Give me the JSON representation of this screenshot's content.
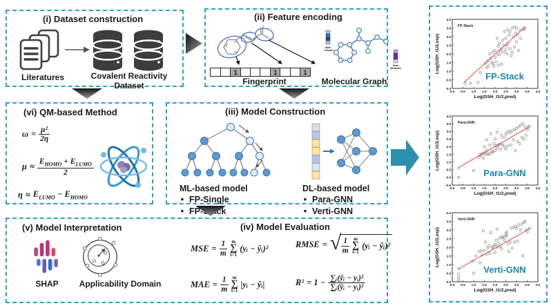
{
  "colors": {
    "border_teal": "#2AA0C8",
    "arrow_teal": "#2D8FAD",
    "plot_label_teal": "#1787AB",
    "trend_red": "#E8483F",
    "node_blue": "#5B9BD5",
    "dark_icon": "#3F3F3F"
  },
  "panel_i": {
    "title": "(i) Dataset construction",
    "literatures_label": "Literatures",
    "dataset_label": "Covalent Reactivity Dataset"
  },
  "panel_ii": {
    "title": "(ii) Feature encoding",
    "fingerprint_label": "Fingerprint",
    "molecular_graph_label": "Molecular Graph",
    "atom_attr_line1": "atom",
    "atom_attr_line2": "attributes",
    "bond_attr_line1": "bond",
    "bond_attr_line2": "attributes",
    "nh2_label": "NH₂",
    "o_label": "O",
    "fingerprint_bits": [
      "",
      "",
      "1",
      "",
      "",
      "",
      "1",
      "",
      "",
      "1"
    ]
  },
  "panel_vi": {
    "title": "(vi) QM-based Method",
    "f1": {
      "lhs": "ω",
      "rel": "=",
      "num": "μ²",
      "den": "2η"
    },
    "f2": {
      "lhs": "μ",
      "rel": "≈",
      "e1": "E",
      "homo": "HOMO",
      "plus": "+",
      "e2": "E",
      "lumo": "LUMO",
      "den": "2"
    },
    "f3": {
      "lhs": "η",
      "rel": "≈",
      "e1": "E",
      "lumo": "LUMO",
      "minus": "−",
      "e2": "E",
      "homo": "HOMO"
    }
  },
  "panel_iii": {
    "title": "(iii) Model Construction",
    "bullet": "•",
    "ml_title": "ML-based model",
    "ml_items": [
      "FP-Single",
      "FP-Stack"
    ],
    "dl_title": "DL-based model",
    "dl_items": [
      "Para-GNN",
      "Verti-GNN"
    ]
  },
  "panel_v": {
    "title": "(v) Model Interpretation",
    "shap_label": "SHAP",
    "ad_label": "Applicability Domain"
  },
  "panel_iv": {
    "title": "(iv) Model Evaluation",
    "mse": {
      "lhs": "MSE",
      "eq": "=",
      "num": "1",
      "den": "m",
      "sum_top": "m",
      "sum": "∑",
      "sum_bot": "i=1",
      "expr": "(yᵢ − ŷᵢ)²"
    },
    "rmse": {
      "lhs": "RMSE",
      "eq": "=",
      "num": "1",
      "den": "m",
      "sum_top": "m",
      "sum": "∑",
      "sum_bot": "i=1",
      "expr": "(yᵢ − ŷᵢ)²"
    },
    "mae": {
      "lhs": "MAE",
      "eq": "=",
      "num": "1",
      "den": "m",
      "sum_top": "m",
      "sum": "∑",
      "sum_bot": "i=1",
      "expr": "|yᵢ − ŷᵢ|"
    },
    "r2": {
      "lhs": "R²",
      "eq": "= 1 −",
      "num": "∑ᵢ(ŷᵢ − yᵢ)²",
      "den": "∑ᵢ(ȳᵢ − yᵢ)²"
    }
  },
  "chart_data": [
    {
      "type": "scatter",
      "inner_label": "FP-Stack",
      "big_label": "FP-Stack",
      "xlabel": "Log(GSH_t1/2,pred)",
      "ylabel": "Log(GSH_t1/2,exp)",
      "xlim": [
        0,
        4
      ],
      "ylim": [
        0,
        4
      ],
      "xticks": [
        0,
        0.5,
        1,
        1.5,
        2,
        2.5,
        3,
        3.5,
        4
      ],
      "yticks": [
        0,
        0.5,
        1,
        1.5,
        2,
        2.5,
        3,
        3.5,
        4
      ],
      "trend": [
        [
          0.55,
          0.35
        ],
        [
          3.4,
          3.55
        ]
      ],
      "points": [
        [
          0.6,
          0.3
        ],
        [
          0.85,
          0.3
        ],
        [
          1.2,
          0.35
        ],
        [
          1.3,
          0.9
        ],
        [
          1.55,
          1.45
        ],
        [
          1.6,
          1.2
        ],
        [
          1.65,
          1.6
        ],
        [
          1.7,
          1.3
        ],
        [
          1.75,
          2.0
        ],
        [
          1.8,
          1.75
        ],
        [
          1.85,
          1.5
        ],
        [
          1.9,
          2.1
        ],
        [
          1.9,
          1.45
        ],
        [
          1.95,
          1.3
        ],
        [
          2.0,
          1.8
        ],
        [
          2.0,
          2.2
        ],
        [
          2.05,
          1.55
        ],
        [
          2.1,
          2.0
        ],
        [
          2.1,
          2.9
        ],
        [
          2.15,
          2.45
        ],
        [
          2.15,
          1.35
        ],
        [
          2.2,
          1.95
        ],
        [
          2.2,
          2.6
        ],
        [
          2.25,
          2.15
        ],
        [
          2.3,
          2.3
        ],
        [
          2.3,
          1.4
        ],
        [
          2.35,
          2.8
        ],
        [
          2.4,
          2.1
        ],
        [
          2.4,
          2.5
        ],
        [
          2.45,
          3.3
        ],
        [
          2.5,
          2.25
        ],
        [
          2.5,
          2.9
        ],
        [
          2.55,
          2.0
        ],
        [
          2.55,
          2.45
        ],
        [
          2.6,
          3.4
        ],
        [
          2.6,
          2.6
        ],
        [
          2.65,
          3.1
        ],
        [
          2.7,
          2.3
        ],
        [
          2.7,
          3.3
        ],
        [
          2.75,
          1.9
        ],
        [
          2.8,
          2.1
        ],
        [
          2.8,
          3.5
        ],
        [
          2.85,
          3.0
        ],
        [
          2.9,
          3.55
        ],
        [
          2.9,
          2.4
        ],
        [
          2.95,
          3.2
        ],
        [
          3.0,
          3.5
        ],
        [
          3.0,
          2.7
        ],
        [
          3.05,
          3.1
        ],
        [
          3.1,
          2.2
        ],
        [
          3.15,
          3.35
        ],
        [
          3.2,
          2.9
        ],
        [
          3.3,
          3.45
        ],
        [
          3.35,
          3.4
        ],
        [
          3.4,
          3.5
        ]
      ]
    },
    {
      "type": "scatter",
      "inner_label": "Para-GNN",
      "big_label": "Para-GNN",
      "xlabel": "Log(GSH_t1/2,pred)",
      "ylabel": "Log(GSH_t1/2,exp)",
      "xlim": [
        0,
        4
      ],
      "ylim": [
        -0.5,
        4
      ],
      "xticks": [
        0,
        0.5,
        1,
        1.5,
        2,
        2.5,
        3,
        3.5,
        4
      ],
      "yticks": [
        -0.5,
        0,
        0.5,
        1,
        1.5,
        2,
        2.5,
        3,
        3.5,
        4
      ],
      "trend": [
        [
          0.3,
          0.65
        ],
        [
          3.6,
          3.3
        ]
      ],
      "points": [
        [
          0.3,
          0.6
        ],
        [
          0.3,
          0.0
        ],
        [
          1.0,
          0.45
        ],
        [
          1.25,
          1.3
        ],
        [
          1.3,
          1.5
        ],
        [
          1.35,
          1.45
        ],
        [
          1.4,
          1.55
        ],
        [
          1.45,
          1.25
        ],
        [
          1.5,
          1.6
        ],
        [
          1.5,
          2.0
        ],
        [
          1.55,
          1.5
        ],
        [
          1.6,
          1.75
        ],
        [
          1.6,
          2.45
        ],
        [
          1.65,
          1.55
        ],
        [
          1.7,
          1.5
        ],
        [
          1.75,
          2.1
        ],
        [
          1.8,
          1.55
        ],
        [
          1.8,
          2.85
        ],
        [
          1.85,
          1.7
        ],
        [
          1.9,
          1.65
        ],
        [
          1.95,
          2.2
        ],
        [
          2.0,
          1.75
        ],
        [
          2.0,
          2.5
        ],
        [
          2.05,
          2.05
        ],
        [
          2.1,
          1.9
        ],
        [
          2.1,
          2.95
        ],
        [
          2.15,
          2.1
        ],
        [
          2.2,
          2.15
        ],
        [
          2.25,
          1.85
        ],
        [
          2.3,
          2.2
        ],
        [
          2.3,
          2.75
        ],
        [
          2.35,
          2.1
        ],
        [
          2.4,
          2.6
        ],
        [
          2.45,
          2.0
        ],
        [
          2.5,
          2.8
        ],
        [
          2.5,
          1.85
        ],
        [
          2.55,
          2.95
        ],
        [
          2.6,
          2.05
        ],
        [
          2.65,
          3.0
        ],
        [
          2.7,
          2.9
        ],
        [
          2.75,
          2.1
        ],
        [
          2.8,
          3.05
        ],
        [
          2.85,
          2.45
        ],
        [
          2.9,
          3.1
        ],
        [
          2.95,
          1.75
        ],
        [
          3.0,
          3.2
        ],
        [
          3.05,
          2.35
        ],
        [
          3.1,
          3.3
        ],
        [
          3.15,
          2.2
        ],
        [
          3.2,
          3.4
        ],
        [
          3.25,
          2.6
        ],
        [
          3.3,
          3.5
        ],
        [
          3.35,
          2.5
        ],
        [
          3.4,
          3.3
        ],
        [
          3.45,
          2.75
        ],
        [
          3.5,
          3.1
        ],
        [
          3.55,
          3.25
        ],
        [
          3.6,
          3.35
        ]
      ]
    },
    {
      "type": "scatter",
      "inner_label": "Verti-GNN",
      "big_label": "Verti-GNN",
      "xlabel": "Log(GSH_t1/2,pred)",
      "ylabel": "Log(GSH_t1/2,exp)",
      "xlim": [
        0,
        4
      ],
      "ylim": [
        0,
        4
      ],
      "xticks": [
        0,
        0.5,
        1,
        1.5,
        2,
        2.5,
        3,
        3.5,
        4
      ],
      "yticks": [
        0,
        0.5,
        1,
        1.5,
        2,
        2.5,
        3,
        3.5,
        4
      ],
      "trend": [
        [
          0.3,
          0.75
        ],
        [
          3.65,
          3.1
        ]
      ],
      "points": [
        [
          0.3,
          0.1
        ],
        [
          0.3,
          0.25
        ],
        [
          0.3,
          0.45
        ],
        [
          0.3,
          0.75
        ],
        [
          0.95,
          1.2
        ],
        [
          1.0,
          0.5
        ],
        [
          1.1,
          1.5
        ],
        [
          1.25,
          1.75
        ],
        [
          1.3,
          1.1
        ],
        [
          1.35,
          1.8
        ],
        [
          1.4,
          1.55
        ],
        [
          1.45,
          2.95
        ],
        [
          1.5,
          1.8
        ],
        [
          1.55,
          2.3
        ],
        [
          1.6,
          1.6
        ],
        [
          1.65,
          1.95
        ],
        [
          1.7,
          2.1
        ],
        [
          1.75,
          1.65
        ],
        [
          1.8,
          2.85
        ],
        [
          1.85,
          2.0
        ],
        [
          1.9,
          1.95
        ],
        [
          1.95,
          2.1
        ],
        [
          2.0,
          2.15
        ],
        [
          2.0,
          1.7
        ],
        [
          2.05,
          2.4
        ],
        [
          2.1,
          2.0
        ],
        [
          2.1,
          3.05
        ],
        [
          2.15,
          2.2
        ],
        [
          2.2,
          2.5
        ],
        [
          2.25,
          2.05
        ],
        [
          2.3,
          2.6
        ],
        [
          2.3,
          1.9
        ],
        [
          2.35,
          2.55
        ],
        [
          2.4,
          2.6
        ],
        [
          2.45,
          2.4
        ],
        [
          2.5,
          2.65
        ],
        [
          2.5,
          2.8
        ],
        [
          2.55,
          2.7
        ],
        [
          2.55,
          2.9
        ],
        [
          2.6,
          2.2
        ],
        [
          2.65,
          1.75
        ],
        [
          2.7,
          2.3
        ],
        [
          2.75,
          3.1
        ],
        [
          2.8,
          1.95
        ],
        [
          2.85,
          3.15
        ],
        [
          2.9,
          2.3
        ],
        [
          2.95,
          3.2
        ],
        [
          3.0,
          3.1
        ],
        [
          3.05,
          2.35
        ],
        [
          3.1,
          3.3
        ],
        [
          3.2,
          3.0
        ],
        [
          3.25,
          3.35
        ],
        [
          3.3,
          1.5
        ],
        [
          3.35,
          3.45
        ],
        [
          3.4,
          3.5
        ],
        [
          3.45,
          3.0
        ],
        [
          3.5,
          2.9
        ],
        [
          3.6,
          3.1
        ]
      ]
    }
  ]
}
